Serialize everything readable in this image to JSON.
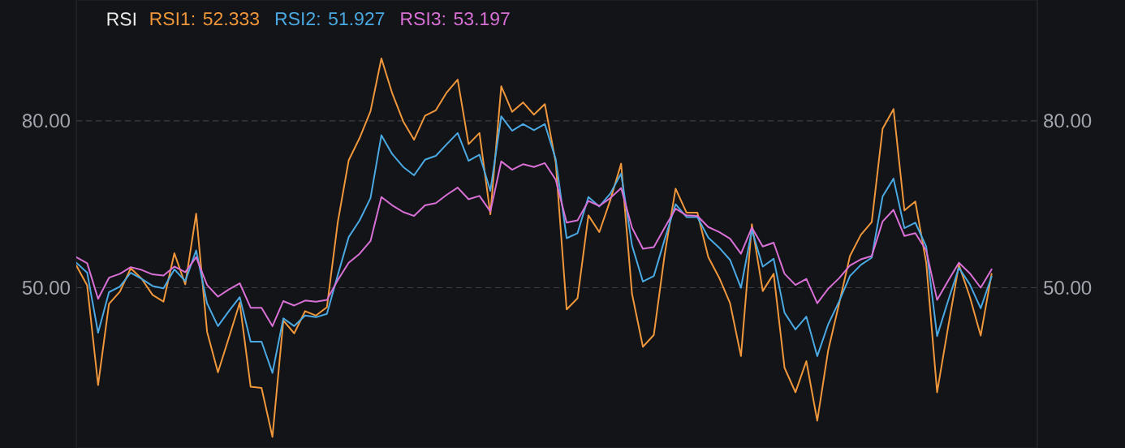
{
  "chart_data": {
    "type": "line",
    "title": "RSI",
    "categories": [
      null,
      null,
      null,
      null,
      null,
      null,
      null,
      null,
      null,
      null,
      null,
      null,
      null,
      null,
      null,
      null,
      null,
      null,
      null,
      null,
      null,
      null,
      null,
      null,
      null,
      null,
      null,
      null,
      null,
      null,
      null,
      null,
      null,
      null,
      null,
      null,
      null,
      null,
      null,
      null,
      null,
      null,
      null,
      null,
      null,
      null,
      null,
      null,
      null,
      null,
      null,
      null,
      null,
      null,
      null,
      null,
      null,
      null,
      null,
      null,
      null,
      null,
      null,
      null,
      null,
      null,
      null,
      null,
      null,
      null,
      null,
      null,
      null,
      null,
      null,
      null,
      null,
      null,
      null,
      null,
      null,
      null,
      null,
      null,
      null
    ],
    "series": [
      {
        "name": "RSI1: 52.333",
        "color": "#f0973b",
        "values": [
          54.0,
          50.4,
          32.5,
          47.1,
          49.3,
          53.5,
          51.6,
          48.7,
          47.5,
          56.2,
          50.6,
          63.3,
          42.1,
          34.8,
          41.0,
          47.3,
          32.2,
          32.0,
          23.2,
          44.1,
          41.8,
          45.8,
          45.0,
          46.5,
          61.8,
          72.9,
          76.9,
          81.7,
          91.2,
          84.9,
          79.9,
          76.6,
          80.9,
          81.9,
          85.1,
          87.4,
          75.8,
          77.8,
          63.2,
          86.2,
          81.6,
          83.3,
          81.1,
          83.0,
          72.5,
          46.1,
          48.1,
          63.0,
          60.0,
          65.7,
          72.3,
          48.9,
          39.4,
          41.5,
          56.0,
          67.8,
          63.5,
          63.5,
          55.5,
          51.8,
          47.2,
          37.7,
          61.4,
          49.4,
          52.5,
          35.6,
          31.2,
          36.8,
          26.1,
          38.7,
          47.1,
          55.7,
          59.5,
          61.8,
          78.6,
          82.1,
          63.9,
          65.5,
          54.5,
          31.2,
          42.8,
          54.1,
          48.4,
          41.4,
          52.5
        ]
      },
      {
        "name": "RSI2: 51.927",
        "color": "#4aa9e2",
        "values": [
          54.5,
          52.7,
          41.9,
          49.2,
          50.2,
          52.7,
          51.6,
          50.3,
          49.9,
          53.3,
          51.2,
          56.7,
          47.2,
          43.1,
          45.8,
          48.3,
          40.3,
          40.3,
          34.7,
          44.5,
          43.1,
          45.0,
          44.7,
          45.3,
          52.3,
          59.1,
          62.1,
          66.1,
          77.4,
          74.0,
          71.7,
          70.2,
          73.0,
          73.7,
          75.8,
          77.8,
          72.8,
          73.9,
          67.4,
          80.8,
          78.2,
          79.4,
          78.3,
          79.4,
          73.1,
          58.9,
          59.8,
          66.3,
          64.6,
          66.9,
          70.5,
          57.6,
          51.1,
          52.1,
          58.7,
          65.0,
          62.7,
          62.7,
          59.0,
          57.2,
          55.0,
          50.0,
          60.4,
          53.8,
          55.2,
          45.5,
          42.5,
          44.8,
          37.7,
          43.4,
          47.5,
          52.1,
          54.1,
          55.4,
          66.4,
          69.6,
          60.7,
          61.7,
          57.4,
          41.3,
          47.6,
          53.6,
          50.6,
          46.3,
          52.0
        ]
      },
      {
        "name": "RSI3: 53.197",
        "color": "#d970d6",
        "values": [
          55.5,
          54.4,
          48.0,
          51.8,
          52.5,
          53.7,
          53.2,
          52.4,
          52.2,
          53.8,
          52.8,
          55.5,
          50.5,
          48.4,
          49.7,
          50.8,
          46.4,
          46.4,
          43.1,
          47.6,
          46.8,
          47.7,
          47.5,
          47.8,
          51.4,
          54.5,
          56.1,
          58.4,
          66.3,
          64.8,
          63.6,
          62.9,
          64.8,
          65.2,
          66.7,
          68.0,
          65.9,
          66.5,
          63.7,
          72.7,
          71.2,
          72.2,
          71.7,
          72.4,
          69.4,
          61.7,
          62.1,
          65.6,
          64.7,
          66.1,
          67.9,
          60.8,
          57.0,
          57.3,
          60.8,
          64.2,
          63.0,
          62.9,
          60.9,
          60.0,
          58.8,
          56.1,
          60.8,
          57.4,
          58.1,
          52.5,
          50.5,
          51.6,
          47.2,
          49.8,
          51.7,
          54.0,
          55.1,
          55.7,
          61.9,
          64.0,
          59.3,
          59.8,
          56.7,
          47.8,
          51.2,
          54.5,
          52.6,
          50.0,
          53.3
        ]
      }
    ],
    "ylim": [
      21.2,
      101.7
    ],
    "yticks": [
      {
        "value": 50,
        "label": "50.00"
      },
      {
        "value": 80,
        "label": "80.00"
      }
    ],
    "y2lim": [
      21.2,
      101.7
    ],
    "y2ticks": [
      {
        "value": 50,
        "label": "50.00"
      },
      {
        "value": 80,
        "label": "80.00"
      }
    ],
    "grid": "y",
    "legend": "top left",
    "line_style": "solid"
  }
}
